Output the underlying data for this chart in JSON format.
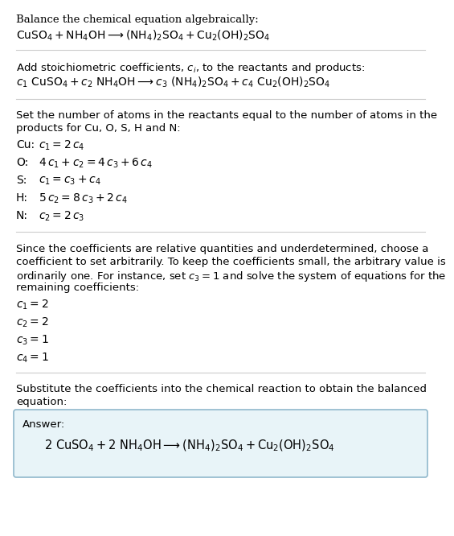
{
  "bg_color": "#ffffff",
  "text_color": "#000000",
  "answer_box_facecolor": "#e8f4f8",
  "answer_box_edgecolor": "#90b8cc",
  "line_color": "#cccccc",
  "font_size": 9.5,
  "font_size_eq": 10.0,
  "font_size_answer": 10.5,
  "section1_title": "Balance the chemical equation algebraically:",
  "section1_eq": "$\\mathrm{CuSO_4 + NH_4OH \\longrightarrow (NH_4)_2SO_4 + Cu_2(OH)_2SO_4}$",
  "section2_title": "Add stoichiometric coefficients, $c_i$, to the reactants and products:",
  "section2_eq": "$c_1\\ \\mathrm{CuSO_4} + c_2\\ \\mathrm{NH_4OH} \\longrightarrow c_3\\ \\mathrm{(NH_4)_2SO_4} + c_4\\ \\mathrm{Cu_2(OH)_2SO_4}$",
  "section3_title1": "Set the number of atoms in the reactants equal to the number of atoms in the",
  "section3_title2": "products for Cu, O, S, H and N:",
  "section3_eqs": [
    [
      "Cu:",
      "$c_1 = 2\\,c_4$"
    ],
    [
      "O:",
      "$4\\,c_1 + c_2 = 4\\,c_3 + 6\\,c_4$"
    ],
    [
      "S:",
      "$c_1 = c_3 + c_4$"
    ],
    [
      "H:",
      "$5\\,c_2 = 8\\,c_3 + 2\\,c_4$"
    ],
    [
      "N:",
      "$c_2 = 2\\,c_3$"
    ]
  ],
  "section4_title1": "Since the coefficients are relative quantities and underdetermined, choose a",
  "section4_title2": "coefficient to set arbitrarily. To keep the coefficients small, the arbitrary value is",
  "section4_title3": "ordinarily one. For instance, set $c_3 = 1$ and solve the system of equations for the",
  "section4_title4": "remaining coefficients:",
  "section4_eqs": [
    "$c_1 = 2$",
    "$c_2 = 2$",
    "$c_3 = 1$",
    "$c_4 = 1$"
  ],
  "section5_title1": "Substitute the coefficients into the chemical reaction to obtain the balanced",
  "section5_title2": "equation:",
  "answer_label": "Answer:",
  "answer_eq": "$2\\ \\mathrm{CuSO_4} + 2\\ \\mathrm{NH_4OH} \\longrightarrow \\mathrm{(NH_4)_2SO_4} + \\mathrm{Cu_2(OH)_2SO_4}$"
}
